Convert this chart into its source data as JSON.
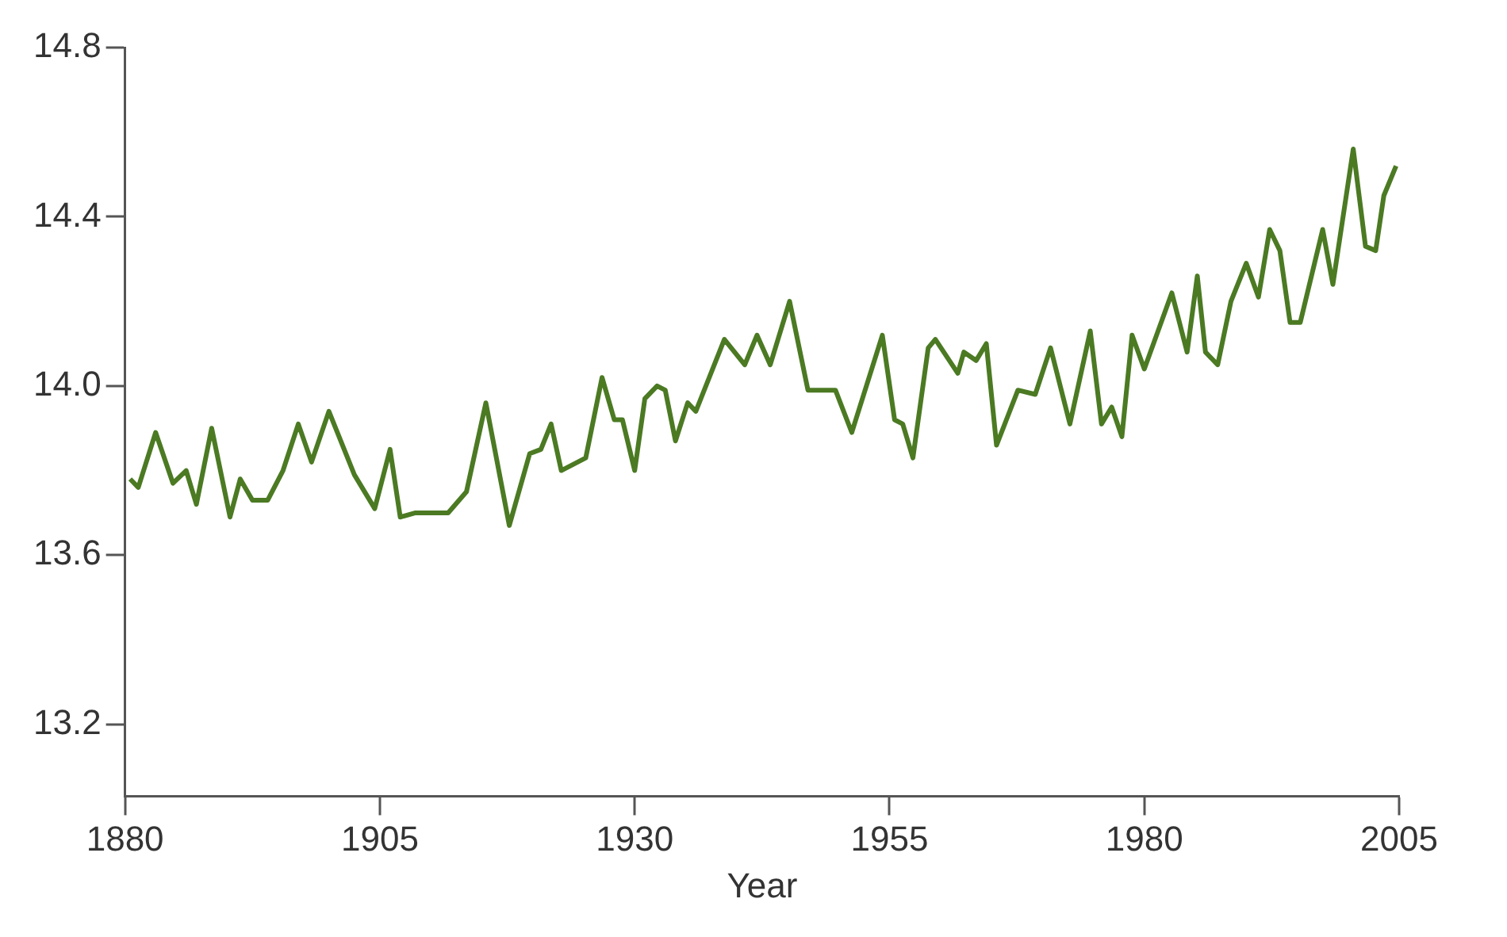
{
  "chart_data": {
    "type": "line",
    "xlabel": "Year",
    "x": [
      1880.5,
      1881.3,
      1883,
      1884.7,
      1886,
      1887,
      1888.5,
      1890.3,
      1891.3,
      1892.5,
      1894,
      1895.5,
      1897,
      1898.3,
      1900,
      1902.5,
      1904.5,
      1906,
      1907,
      1908.5,
      1911.7,
      1913.5,
      1915.4,
      1917.7,
      1919.7,
      1920.8,
      1921.8,
      1922.8,
      1925.2,
      1926.8,
      1928,
      1928.8,
      1930,
      1931,
      1932.2,
      1933,
      1934,
      1935.2,
      1936,
      1938.8,
      1940.8,
      1942,
      1943.3,
      1945.2,
      1947,
      1949.7,
      1951.3,
      1954.3,
      1955.5,
      1956.3,
      1957.3,
      1958.8,
      1959.5,
      1961.7,
      1962.3,
      1963.5,
      1964.5,
      1965.5,
      1967.6,
      1969.3,
      1970.8,
      1972.7,
      1974.7,
      1975.8,
      1976.8,
      1977.8,
      1978.8,
      1980,
      1982.7,
      1984.2,
      1985.2,
      1986,
      1987.2,
      1988.5,
      1990,
      1991.2,
      1992.3,
      1993.3,
      1994.3,
      1995.3,
      1997.5,
      1998.5,
      2000.5,
      2001.7,
      2002.7,
      2003.5,
      2004.7
    ],
    "series": [
      {
        "color": "#4b7a23",
        "values": [
          13.78,
          13.76,
          13.89,
          13.77,
          13.8,
          13.72,
          13.9,
          13.69,
          13.78,
          13.73,
          13.73,
          13.8,
          13.91,
          13.82,
          13.94,
          13.79,
          13.71,
          13.85,
          13.69,
          13.7,
          13.7,
          13.75,
          13.96,
          13.67,
          13.84,
          13.85,
          13.91,
          13.8,
          13.83,
          14.02,
          13.92,
          13.92,
          13.8,
          13.97,
          14.0,
          13.99,
          13.87,
          13.96,
          13.94,
          14.11,
          14.05,
          14.12,
          14.05,
          14.2,
          13.99,
          13.99,
          13.89,
          14.12,
          13.92,
          13.91,
          13.83,
          14.09,
          14.11,
          14.03,
          14.08,
          14.06,
          14.1,
          13.86,
          13.99,
          13.98,
          14.09,
          13.91,
          14.13,
          13.91,
          13.95,
          13.88,
          14.12,
          14.04,
          14.22,
          14.08,
          14.26,
          14.08,
          14.05,
          14.2,
          14.29,
          14.21,
          14.37,
          14.32,
          14.15,
          14.15,
          14.37,
          14.24,
          14.56,
          14.33,
          14.32,
          14.45,
          14.52
        ]
      }
    ],
    "xlim": [
      1880,
      2005
    ],
    "xticks": [
      1880,
      1905,
      1930,
      1955,
      1980,
      2005
    ],
    "ylim": [
      13.03,
      14.8
    ],
    "yticks": [
      {
        "value": 13.2,
        "label": "13.2"
      },
      {
        "value": 13.6,
        "label": "13.6"
      },
      {
        "value": 14.0,
        "label": "14.0"
      },
      {
        "value": 14.4,
        "label": "14.4"
      },
      {
        "value": 14.8,
        "label": "14.8"
      }
    ],
    "grid": false,
    "legend": false,
    "marker": "none",
    "line_style": "solid"
  }
}
